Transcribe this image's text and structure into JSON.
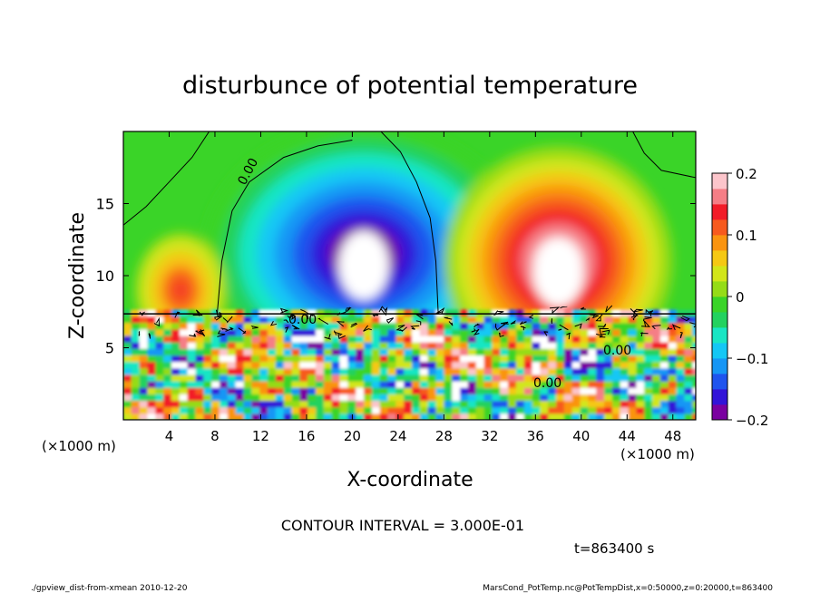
{
  "chart_data": {
    "type": "heatmap",
    "title": "disturbunce of potential temperature",
    "xlabel": "X-coordinate",
    "ylabel": "Z-coordinate",
    "x_unit": "(×1000 m)",
    "y_unit": "(×1000 m)",
    "xlim": [
      0,
      50
    ],
    "ylim": [
      0,
      20
    ],
    "x_ticks": [
      4,
      8,
      12,
      16,
      20,
      24,
      28,
      32,
      36,
      40,
      44,
      48
    ],
    "y_ticks": [
      5,
      10,
      15
    ],
    "colorbar": {
      "min": -0.2,
      "max": 0.2,
      "ticks": [
        0.2,
        0.1,
        0,
        -0.1,
        -0.2
      ],
      "tick_labels": [
        "0.2",
        "0.1",
        "0",
        "−0.1",
        "−0.2"
      ],
      "colors": [
        "#7a00a0",
        "#3214d8",
        "#1f54ee",
        "#1696f5",
        "#14c7f5",
        "#19e6c4",
        "#23d25f",
        "#3ad428",
        "#95dc17",
        "#d2e61a",
        "#f5c814",
        "#fa9410",
        "#f75a1e",
        "#f21c28",
        "#f57e86",
        "#fcc5cb"
      ]
    },
    "contour_labels": [
      "0.00",
      "0.00",
      "0.00",
      "0.00"
    ],
    "upper_layer_features": [
      {
        "kind": "cold",
        "x": 21,
        "z": 11.5,
        "radius_x": 14,
        "radius_z": 9,
        "value": -0.2
      },
      {
        "kind": "warm",
        "x": 38,
        "z": 11,
        "radius_x": 10,
        "radius_z": 8,
        "value": 0.2
      },
      {
        "kind": "warm",
        "x": 5,
        "z": 9,
        "radius_x": 4,
        "radius_z": 4,
        "value": 0.13
      }
    ]
  },
  "annotations": {
    "contour_interval": "CONTOUR INTERVAL = 3.000E-01",
    "time": "t=863400 s",
    "footer_left": "./gpview_dist-from-xmean  2010-12-20",
    "footer_right": "MarsCond_PotTemp.nc@PotTempDist,x=0:50000,z=0:20000,t=863400"
  }
}
